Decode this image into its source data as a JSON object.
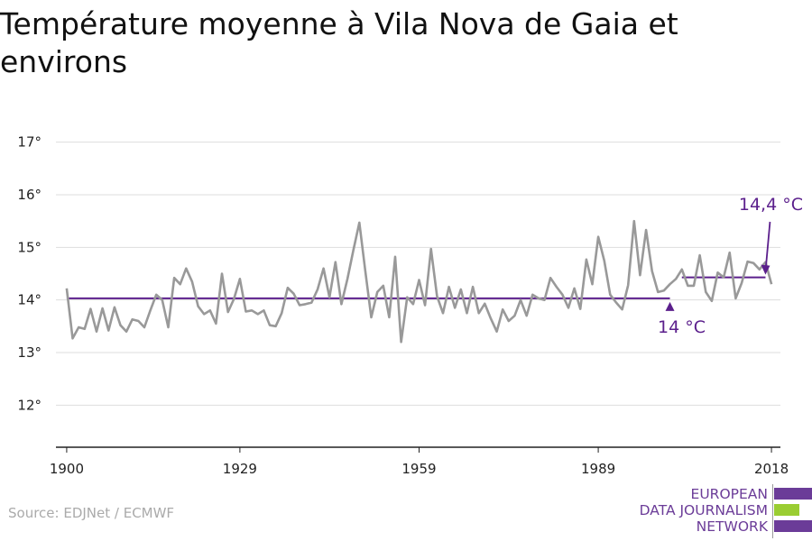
{
  "title": "Température moyenne à Vila Nova de Gaia et environs",
  "source": "Source: EDJNet / ECMWF",
  "logo": {
    "lines": [
      "EUROPEAN",
      "DATA JOURNALISM",
      "NETWORK"
    ],
    "colors": [
      "#6b3c98",
      "#9acd32",
      "#6b3c98"
    ]
  },
  "colors": {
    "series": "#999999",
    "average": "#5b1f8c",
    "grid": "#dddddd",
    "axis": "#222222"
  },
  "chart_data": {
    "type": "line",
    "title": "Température moyenne à Vila Nova de Gaia et environs",
    "xlabel": "",
    "ylabel": "",
    "xlim": [
      1900,
      2018
    ],
    "ylim": [
      11.2,
      17.2
    ],
    "x_ticks": [
      1900,
      1929,
      1959,
      1989,
      2018
    ],
    "x_tick_labels": [
      "1900",
      "1929",
      "1959",
      "1989",
      "2018"
    ],
    "y_ticks": [
      12,
      13,
      14,
      15,
      16,
      17
    ],
    "y_tick_labels": [
      "12°",
      "13°",
      "14°",
      "15°",
      "16°",
      "17°"
    ],
    "grid": true,
    "series": [
      {
        "start_year": 1900,
        "values": [
          14.22,
          13.27,
          13.48,
          13.45,
          13.83,
          13.4,
          13.84,
          13.42,
          13.86,
          13.52,
          13.4,
          13.63,
          13.6,
          13.48,
          13.8,
          14.1,
          14.0,
          13.48,
          14.42,
          14.3,
          14.6,
          14.35,
          13.88,
          13.73,
          13.8,
          13.55,
          14.5,
          13.77,
          14.02,
          14.4,
          13.78,
          13.8,
          13.73,
          13.8,
          13.52,
          13.5,
          13.75,
          14.23,
          14.12,
          13.9,
          13.92,
          13.95,
          14.2,
          14.6,
          14.05,
          14.72,
          13.92,
          14.4,
          14.95,
          15.47,
          14.55,
          13.67,
          14.15,
          14.27,
          13.67,
          14.82,
          13.2,
          14.05,
          13.92,
          14.38,
          13.9,
          14.97,
          14.07,
          13.75,
          14.25,
          13.85,
          14.2,
          13.75,
          14.25,
          13.75,
          13.93,
          13.65,
          13.4,
          13.82,
          13.6,
          13.7,
          14.0,
          13.7,
          14.1,
          14.03,
          14.0,
          14.42,
          14.25,
          14.1,
          13.85,
          14.22,
          13.83,
          14.77,
          14.3,
          15.2,
          14.75,
          14.1,
          13.95,
          13.82,
          14.28,
          15.5,
          14.47,
          15.33,
          14.55,
          14.15,
          14.18,
          14.3,
          14.4,
          14.58,
          14.27,
          14.27,
          14.85,
          14.15,
          13.98,
          14.52,
          14.43,
          14.9,
          14.03,
          14.32,
          14.73,
          14.7,
          14.58,
          14.72,
          14.3
        ]
      }
    ],
    "averages": [
      {
        "x_start": 1900,
        "x_end": 2001,
        "value": 14.03,
        "label": "14 °C"
      },
      {
        "x_start": 2003,
        "x_end": 2017,
        "value": 14.43,
        "label": "14,4 °C"
      }
    ]
  }
}
